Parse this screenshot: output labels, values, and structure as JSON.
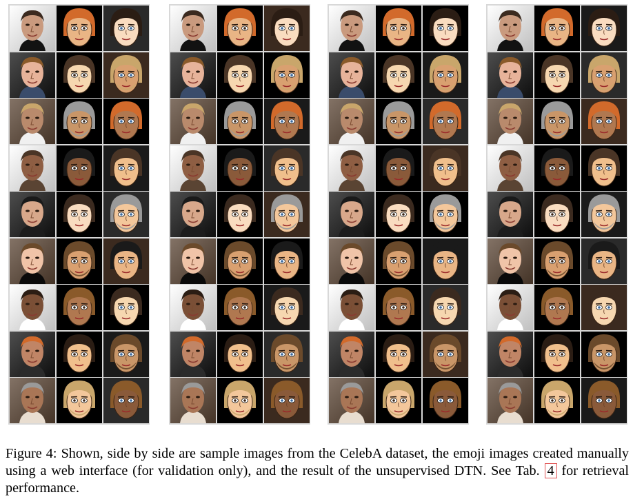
{
  "figure": {
    "caption_text": "Figure 4:  Shown, side by side are sample images from the CelebA dataset, the emoji images created manually using a web interface (for validation only), and the result of the unsupervised DTN. See Tab.",
    "ref_label": "4",
    "caption_end": "for retrieval performance."
  },
  "grid": {
    "groups": 4,
    "rows": 9,
    "columns_per_group": [
      "CelebA photo",
      "manual emoji",
      "DTN result"
    ],
    "palette": {
      "photo_skin": [
        "#c99a7e",
        "#e7b39a",
        "#b98a6c",
        "#8e5e43",
        "#d8a88b",
        "#f0c4a8",
        "#7a4f36",
        "#c08566",
        "#a97656"
      ],
      "emoji_skin": [
        "#f3c79b",
        "#e9b585",
        "#f6d7b0",
        "#c99668",
        "#8a5a3a",
        "#f9dcc0",
        "#d9a070",
        "#b07850",
        "#f0bf8c"
      ],
      "hair": [
        "#1a1a1a",
        "#3b2a1f",
        "#6b4a2b",
        "#8a5a2a",
        "#2b1d14",
        "#c9a66b",
        "#d26a2b",
        "#4a3526",
        "#9a9a9a"
      ],
      "background": [
        "#0a0a0a",
        "#ffffff",
        "#2b2b2b",
        "#e8ddd0",
        "#121212",
        "#3a4c6b",
        "#f0f0f0",
        "#5a4433",
        "#1c1c1c"
      ]
    }
  }
}
